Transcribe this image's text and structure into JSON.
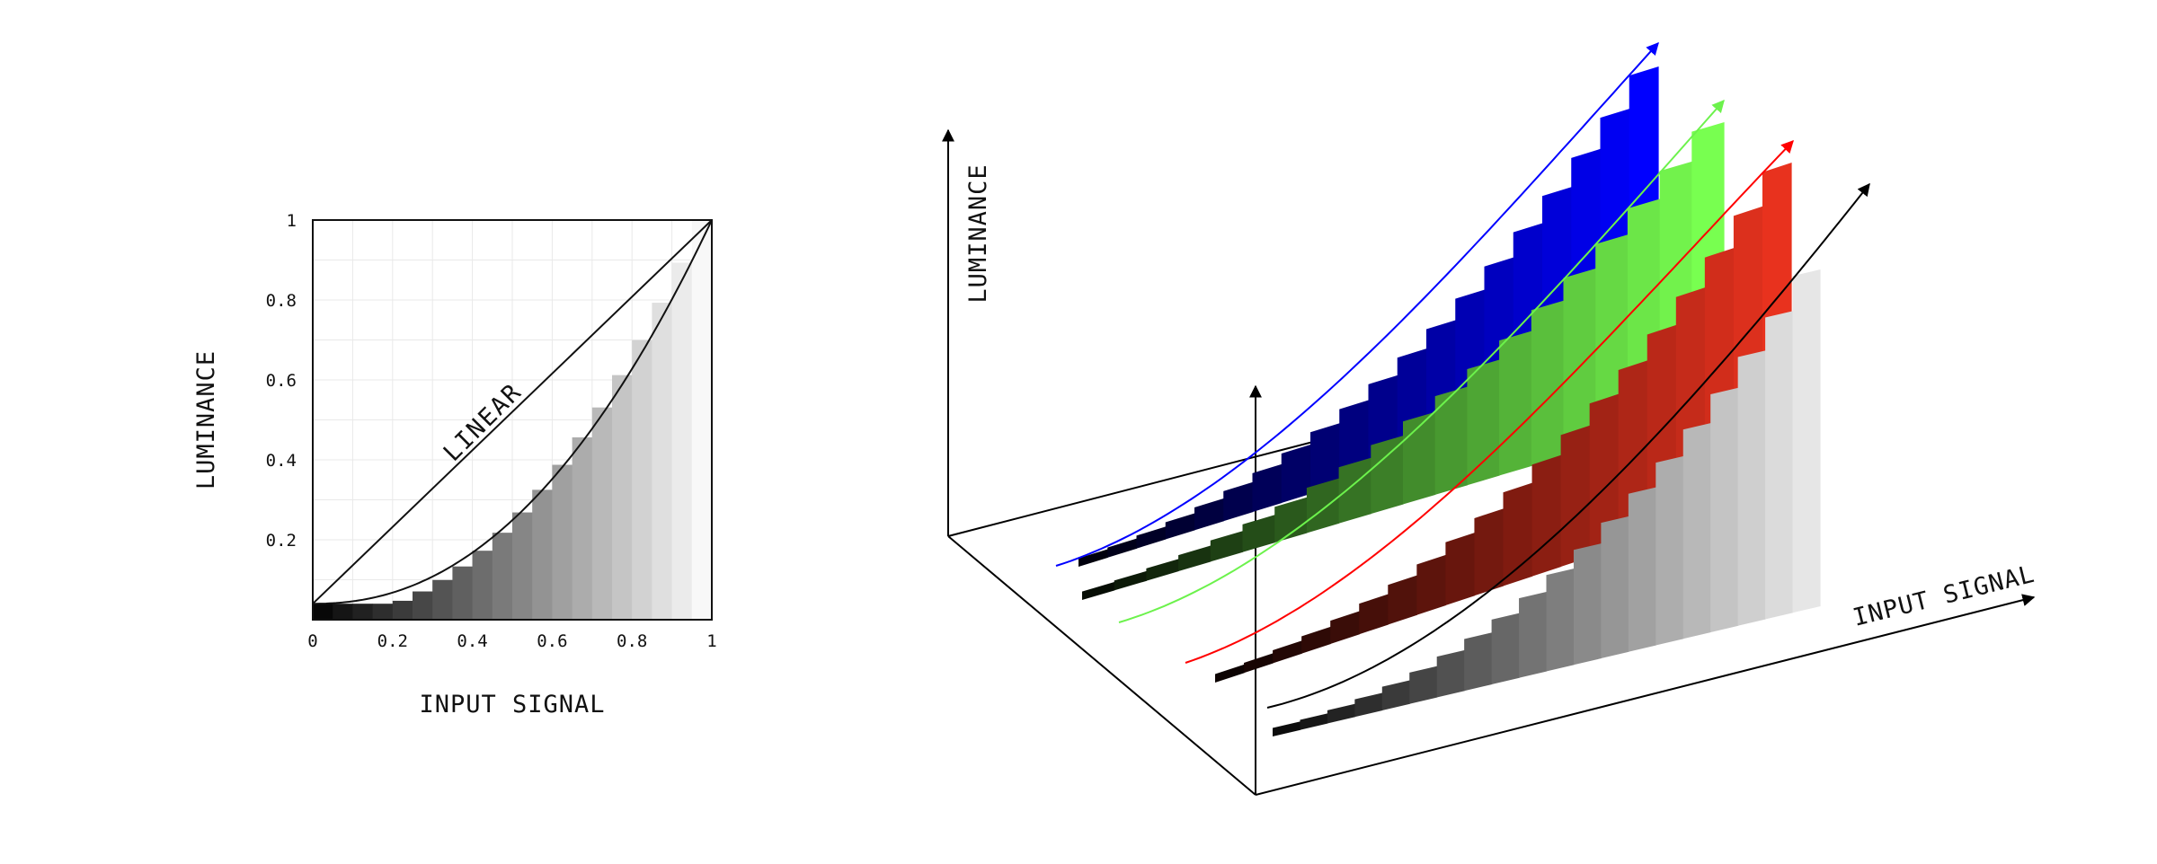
{
  "chart_data": {
    "type": "bar",
    "curve": "power",
    "gamma": 2.2,
    "bar_count": 20,
    "xlabel": "INPUT SIGNAL",
    "ylabel": "LUMINANCE",
    "xlim": [
      0,
      1
    ],
    "ylim": [
      0,
      1
    ],
    "x_ticks": [
      "0",
      "0.2",
      "0.4",
      "0.6",
      "0.8",
      "1"
    ],
    "y_ticks": [
      "0.2",
      "0.4",
      "0.6",
      "0.8",
      "1"
    ],
    "grid": true,
    "reference_line": {
      "label": "LINEAR",
      "from": [
        0,
        0
      ],
      "to": [
        1,
        1
      ]
    }
  },
  "perspective_view": {
    "xlabel": "INPUT SIGNAL",
    "ylabel": "LUMINANCE",
    "channels": [
      {
        "channel": "blue",
        "color": "#0000ff",
        "curve_color": "#0000ff"
      },
      {
        "channel": "green",
        "color": "#78ff50",
        "curve_color": "#6cf24c"
      },
      {
        "channel": "red",
        "color": "#e8321e",
        "curve_color": "#ff0000"
      },
      {
        "channel": "gray",
        "color": "#e6e6e6",
        "curve_color": "#000000"
      }
    ]
  }
}
